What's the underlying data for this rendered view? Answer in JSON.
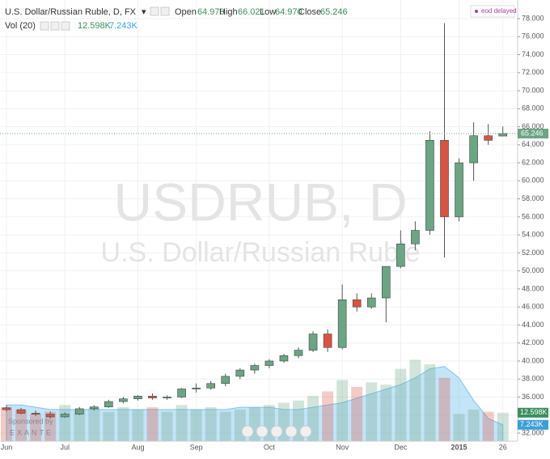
{
  "chart_data": {
    "type": "candlestick",
    "title": "U.S. Dollar/Russian Ruble, D, FX",
    "watermark": "USDRUB, D",
    "watermark_subtitle": "U.S. Dollar/Russian Ruble",
    "status": "eod delayed",
    "sponsor": "Sponsored by",
    "sponsor_name": "EXANTE",
    "legend": {
      "open_label": "Open",
      "open": "64.970",
      "high_label": "High",
      "high": "66.021",
      "low_label": "Low",
      "low": "64.970",
      "close_label": "Close",
      "close": "65.246"
    },
    "categories": [
      "Jun",
      null,
      null,
      null,
      "Jul",
      null,
      null,
      null,
      null,
      "Aug",
      null,
      null,
      null,
      "Sep",
      null,
      null,
      null,
      null,
      "Oct",
      null,
      null,
      null,
      null,
      "Nov",
      null,
      null,
      null,
      "Dec",
      null,
      null,
      null,
      "2015",
      null,
      null,
      "26"
    ],
    "open": [
      34.8,
      34.6,
      34.2,
      34.1,
      33.8,
      34.1,
      34.7,
      34.9,
      35.5,
      35.8,
      36.1,
      35.9,
      36.0,
      36.9,
      37.0,
      37.5,
      38.3,
      39.0,
      39.5,
      40.0,
      40.6,
      41.2,
      43.0,
      41.5,
      46.8,
      46.0,
      47.0,
      50.5,
      53.0,
      54.5,
      64.5,
      56.0,
      62.0,
      65.0,
      64.97
    ],
    "high": [
      35.1,
      34.8,
      34.5,
      34.4,
      34.3,
      34.9,
      35.1,
      35.7,
      36.0,
      36.2,
      36.4,
      36.2,
      37.0,
      37.5,
      37.8,
      38.6,
      39.2,
      39.7,
      40.2,
      40.8,
      41.5,
      43.3,
      43.5,
      48.5,
      47.5,
      47.5,
      50.5,
      54.5,
      55.5,
      65.5,
      77.5,
      62.5,
      66.5,
      66.3,
      66.021
    ],
    "low": [
      34.4,
      34.1,
      33.9,
      33.6,
      33.7,
      34.0,
      34.5,
      34.8,
      35.3,
      35.6,
      35.7,
      35.7,
      35.9,
      36.5,
      36.8,
      37.2,
      38.0,
      38.6,
      39.2,
      39.8,
      40.3,
      41.0,
      41.0,
      41.3,
      45.5,
      45.8,
      44.3,
      50.3,
      52.3,
      54.0,
      51.5,
      55.5,
      60.0,
      64.0,
      64.97
    ],
    "close": [
      34.6,
      34.2,
      34.1,
      33.8,
      34.1,
      34.7,
      34.9,
      35.5,
      35.8,
      36.1,
      35.9,
      36.0,
      36.9,
      37.0,
      37.5,
      38.3,
      39.0,
      39.5,
      40.0,
      40.6,
      41.2,
      43.0,
      41.5,
      46.8,
      46.0,
      47.0,
      50.5,
      53.0,
      54.5,
      64.5,
      56.0,
      62.0,
      65.0,
      64.5,
      65.246
    ],
    "up_color": "#6ba583",
    "down_color": "#d75442",
    "ylim": [
      31.1,
      80.07
    ],
    "yticks": [
      {
        "value": 32,
        "label": "32.000"
      },
      {
        "value": 34,
        "label": "34.000"
      },
      {
        "value": 36,
        "label": "36.000"
      },
      {
        "value": 38,
        "label": "38.000"
      },
      {
        "value": 40,
        "label": "40.000"
      },
      {
        "value": 42,
        "label": "42.000"
      },
      {
        "value": 44,
        "label": "44.000"
      },
      {
        "value": 46,
        "label": "46.000"
      },
      {
        "value": 48,
        "label": "48.000"
      },
      {
        "value": 50,
        "label": "50.000"
      },
      {
        "value": 52,
        "label": "52.000"
      },
      {
        "value": 54,
        "label": "54.000"
      },
      {
        "value": 56,
        "label": "56.000"
      },
      {
        "value": 58,
        "label": "58.000"
      },
      {
        "value": 60,
        "label": "60.000"
      },
      {
        "value": 62,
        "label": "62.000"
      },
      {
        "value": 64,
        "label": "64.000"
      },
      {
        "value": 66,
        "label": "66.000"
      },
      {
        "value": 68,
        "label": "68.000"
      },
      {
        "value": 70,
        "label": "70.000"
      },
      {
        "value": 72,
        "label": "72.000"
      },
      {
        "value": 74,
        "label": "74.000"
      },
      {
        "value": 76,
        "label": "76.000"
      },
      {
        "value": 78,
        "label": "78.000"
      }
    ],
    "volume": {
      "name": "Vol (20)",
      "values": [
        15,
        14,
        12,
        13,
        16,
        14,
        15,
        13,
        15,
        14,
        15,
        13,
        16,
        14,
        15,
        13,
        14,
        15,
        16,
        17,
        18,
        20,
        22,
        27,
        24,
        26,
        25,
        32,
        36,
        34,
        28,
        12,
        14,
        13,
        12.598
      ],
      "last_label": "12.598K",
      "ma_values": [
        16,
        16,
        15,
        14,
        14,
        14,
        14,
        14,
        14,
        14,
        14,
        14,
        14,
        14,
        14,
        14,
        15,
        15,
        15,
        14,
        14,
        15,
        16,
        17,
        19,
        21,
        23,
        25,
        28,
        32,
        33,
        28,
        18,
        10,
        7.243
      ],
      "ma_last_label": "7.243K",
      "ma_color": "#7cc4ef",
      "y2lim": [
        0,
        195
      ]
    }
  }
}
